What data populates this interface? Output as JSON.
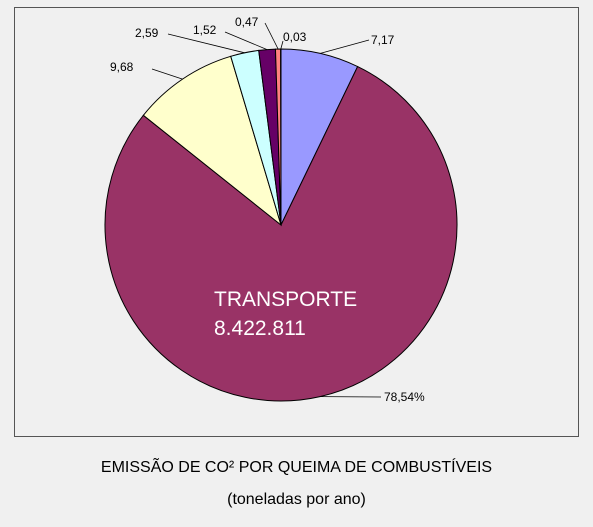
{
  "chart_data": {
    "type": "pie",
    "slices": [
      {
        "label": "7,17",
        "value": 7.17,
        "color": "#9999ff"
      },
      {
        "label": "78,54%",
        "value": 78.54,
        "color": "#993366"
      },
      {
        "label": "9,68",
        "value": 9.68,
        "color": "#ffffcc"
      },
      {
        "label": "2,59",
        "value": 2.59,
        "color": "#ccffff"
      },
      {
        "label": "1,52",
        "value": 1.52,
        "color": "#660066"
      },
      {
        "label": "0,47",
        "value": 0.47,
        "color": "#ff8080"
      },
      {
        "label": "0,03",
        "value": 0.03,
        "color": "#0066cc"
      }
    ],
    "annotation": {
      "title": "TRANSPORTE",
      "value": "8.422.811"
    }
  },
  "caption": {
    "line1": "EMISSÃO DE CO² POR QUEIMA DE COMBUSTÍVEIS",
    "line2": "(toneladas por ano)"
  }
}
